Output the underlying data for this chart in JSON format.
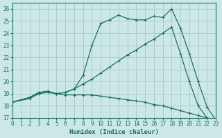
{
  "background_color": "#cce8e6",
  "grid_color": "#aaccca",
  "line_color": "#1a6e65",
  "xlabel": "Humidex (Indice chaleur)",
  "xlim": [
    0,
    23
  ],
  "ylim": [
    17,
    26.5
  ],
  "xticks": [
    0,
    1,
    2,
    3,
    4,
    5,
    6,
    7,
    8,
    9,
    10,
    11,
    12,
    13,
    14,
    15,
    16,
    17,
    18,
    19,
    20,
    21,
    22,
    23
  ],
  "yticks": [
    17,
    18,
    19,
    20,
    21,
    22,
    23,
    24,
    25,
    26
  ],
  "line_top_x": [
    0,
    2,
    3,
    4,
    5,
    6,
    7,
    8,
    9,
    10,
    11,
    12,
    13,
    14,
    15,
    16,
    17,
    18,
    19,
    20,
    21,
    22,
    23
  ],
  "line_top_y": [
    18.3,
    18.7,
    19.1,
    19.2,
    19.0,
    19.1,
    19.4,
    20.5,
    23.0,
    24.8,
    25.1,
    25.5,
    25.2,
    25.1,
    25.1,
    25.4,
    25.3,
    26.0,
    24.4,
    22.3,
    20.0,
    17.9,
    16.8
  ],
  "line_mid_x": [
    0,
    2,
    3,
    4,
    5,
    6,
    7,
    8,
    9,
    10,
    11,
    12,
    13,
    14,
    15,
    16,
    17,
    18,
    19,
    20,
    21,
    22,
    23
  ],
  "line_mid_y": [
    18.3,
    18.7,
    19.1,
    19.2,
    19.0,
    19.1,
    19.4,
    19.8,
    20.2,
    20.7,
    21.2,
    21.7,
    22.2,
    22.6,
    23.1,
    23.5,
    24.0,
    24.5,
    22.3,
    20.0,
    18.0,
    17.0,
    16.8
  ],
  "line_bot_x": [
    0,
    2,
    3,
    4,
    5,
    6,
    7,
    8,
    9,
    10,
    11,
    12,
    13,
    14,
    15,
    16,
    17,
    18,
    19,
    20,
    21,
    22,
    23
  ],
  "line_bot_y": [
    18.3,
    18.6,
    19.0,
    19.1,
    19.0,
    18.9,
    18.9,
    18.9,
    18.9,
    18.8,
    18.7,
    18.6,
    18.5,
    18.4,
    18.3,
    18.1,
    18.0,
    17.8,
    17.6,
    17.4,
    17.2,
    17.0,
    16.8
  ]
}
